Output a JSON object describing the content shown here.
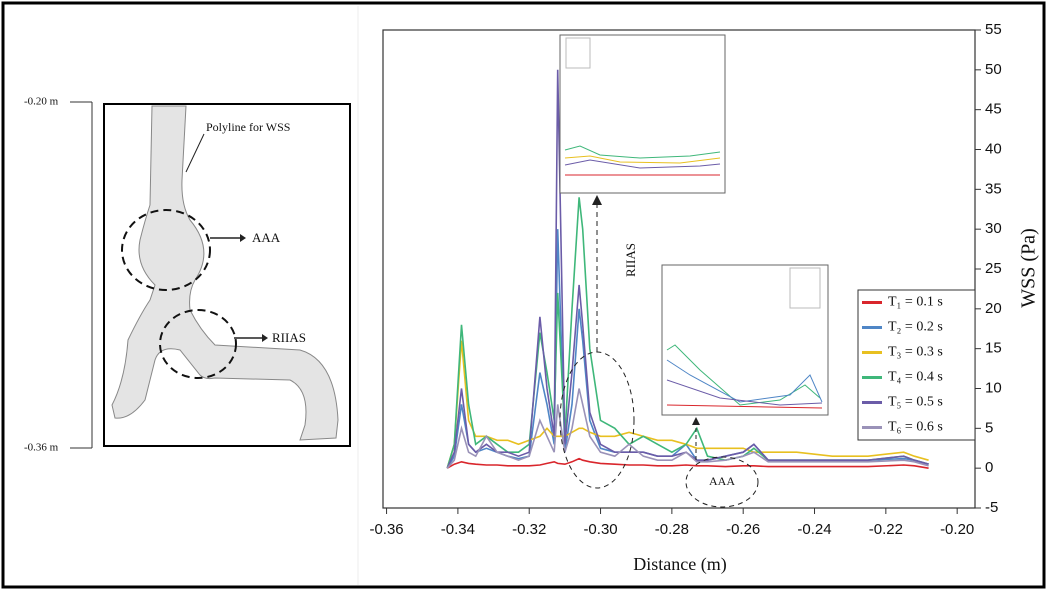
{
  "diagram": {
    "top_label": "-0.20 m",
    "bottom_label": "-0.36 m",
    "polyline_label": "Polyline for WSS",
    "aaa_label": "AAA",
    "riias_label": "RIIAS"
  },
  "chart_data": {
    "type": "line",
    "x_label": "Distance (m)",
    "y_label": "WSS (Pa)",
    "annotations": [
      "RIIAS",
      "AAA"
    ],
    "xlim": [
      -0.361,
      -0.195
    ],
    "xticks": [
      -0.36,
      -0.34,
      -0.32,
      {
        "value": -0.3,
        "label": "-0.30"
      },
      -0.28,
      -0.26,
      -0.24,
      -0.22,
      {
        "value": -0.2,
        "label": "-0.20"
      }
    ],
    "ylim": [
      -5,
      55
    ],
    "yticks": [
      -5,
      0,
      5,
      10,
      15,
      20,
      25,
      30,
      35,
      40,
      45,
      50,
      55
    ],
    "legend": "right",
    "x": [
      -0.343,
      -0.341,
      -0.339,
      -0.337,
      -0.335,
      -0.332,
      -0.329,
      -0.326,
      -0.323,
      -0.32,
      -0.317,
      -0.315,
      -0.313,
      -0.312,
      -0.31,
      -0.308,
      -0.306,
      -0.305,
      -0.303,
      -0.3,
      -0.296,
      -0.292,
      -0.288,
      -0.284,
      -0.28,
      -0.276,
      -0.273,
      -0.27,
      -0.265,
      -0.26,
      -0.257,
      -0.253,
      -0.245,
      -0.235,
      -0.225,
      -0.215,
      -0.212,
      -0.208
    ],
    "series": [
      {
        "name": "T₁ = 0.1 s",
        "color": "#d9262c",
        "values": [
          0,
          0.5,
          0.8,
          0.6,
          0.5,
          0.4,
          0.4,
          0.3,
          0.3,
          0.3,
          0.4,
          0.6,
          0.8,
          0.6,
          0.5,
          0.8,
          1.2,
          1.0,
          0.8,
          0.6,
          0.5,
          0.4,
          0.4,
          0.3,
          0.3,
          0.4,
          0.3,
          0.3,
          0.2,
          0.3,
          0.3,
          0.2,
          0.2,
          0.2,
          0.2,
          0.4,
          0.3,
          0
        ]
      },
      {
        "name": "T₂ = 0.2 s",
        "color": "#4f86c6",
        "values": [
          0,
          1.5,
          8,
          3,
          2,
          2.5,
          2,
          1.5,
          1.2,
          1.5,
          12,
          8,
          3,
          30,
          2,
          8,
          20,
          16,
          6,
          2.5,
          2,
          2,
          2,
          1.5,
          1.5,
          3,
          1,
          1,
          1.5,
          2,
          3,
          1,
          1,
          1,
          1,
          1.2,
          1,
          0.5
        ]
      },
      {
        "name": "T₃ = 0.3 s",
        "color": "#e8c020",
        "values": [
          0,
          3,
          16,
          6,
          4,
          4,
          3.5,
          3.5,
          3,
          3.5,
          4,
          5,
          4,
          4,
          4,
          4.5,
          5,
          5,
          4.5,
          4,
          4,
          4.5,
          4,
          3.5,
          3.5,
          3,
          2.5,
          2.5,
          2.5,
          2.5,
          2,
          2,
          2,
          1.5,
          1.5,
          2,
          1.5,
          1
        ]
      },
      {
        "name": "T₄ = 0.4 s",
        "color": "#3fb77a",
        "values": [
          0,
          3,
          18,
          8,
          3,
          4,
          3,
          2,
          2,
          3,
          17,
          12,
          6,
          22,
          4,
          20,
          34,
          30,
          15,
          6,
          5,
          3,
          4,
          3,
          2,
          3,
          5,
          1.5,
          1,
          1.5,
          2.5,
          1,
          1,
          1,
          1,
          1.5,
          1,
          0.5
        ]
      },
      {
        "name": "T₅ = 0.5 s",
        "color": "#6b5ca8",
        "values": [
          0,
          2,
          10,
          3,
          2,
          3,
          2,
          2,
          1.5,
          2,
          19,
          10,
          4,
          50,
          3,
          12,
          23,
          18,
          7,
          3,
          2,
          2,
          2,
          1.5,
          1.5,
          2,
          1,
          1,
          1.5,
          2,
          3,
          1,
          1,
          1,
          1,
          1.5,
          1,
          0.5
        ]
      },
      {
        "name": "T₆ = 0.6 s",
        "color": "#9a92b8",
        "values": [
          0,
          1,
          5,
          2,
          1.5,
          4,
          2,
          1.5,
          1,
          1.5,
          6,
          4,
          2,
          8,
          2,
          5,
          10,
          8,
          4,
          2,
          1.5,
          3,
          1.5,
          1,
          1,
          2,
          0.8,
          0.8,
          1,
          1.5,
          2,
          0.8,
          0.8,
          0.8,
          0.8,
          1,
          0.8,
          0.3
        ]
      }
    ]
  }
}
